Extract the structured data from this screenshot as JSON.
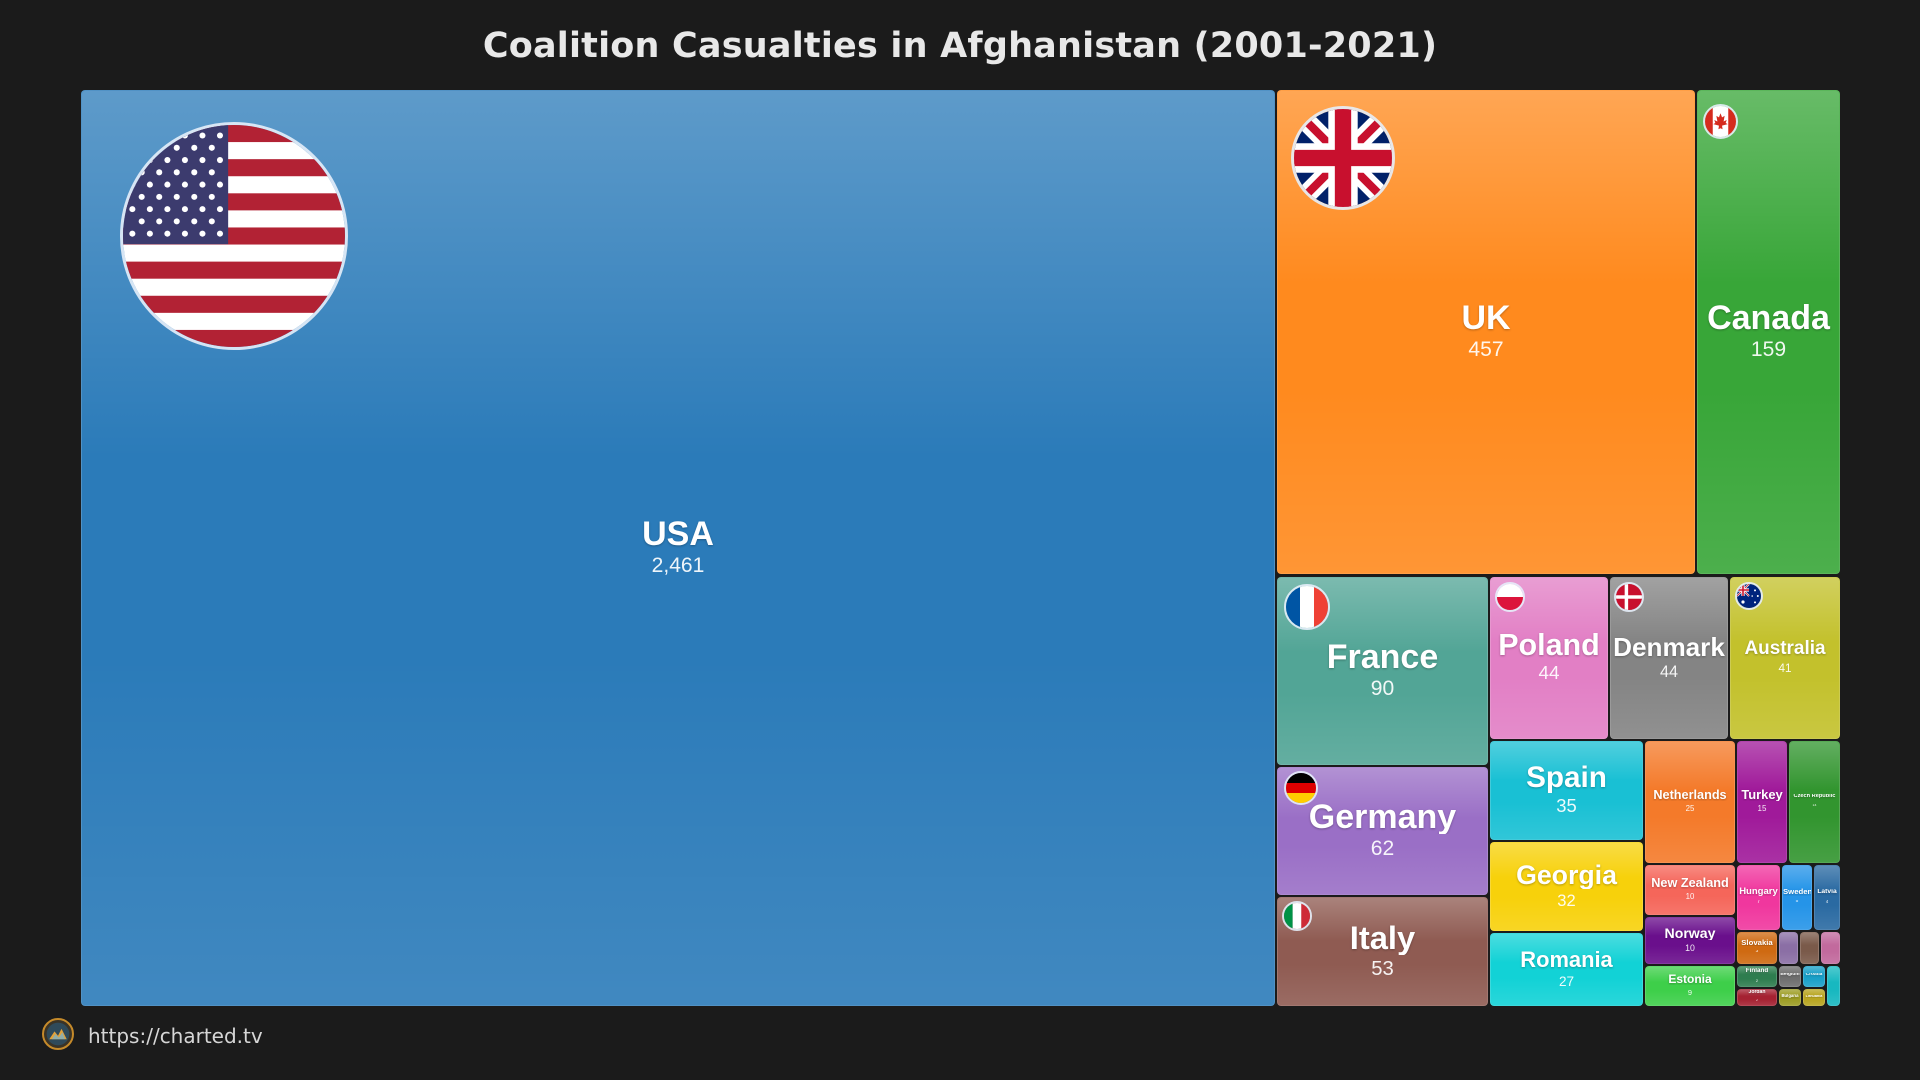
{
  "chart_data": {
    "type": "treemap",
    "title": "Coalition Casualties in Afghanistan (2001-2021)",
    "nodes": [
      {
        "label": "USA",
        "value": 2461,
        "display": "2,461",
        "color": "#2b7bb9",
        "flag": "usa-flag-icon"
      },
      {
        "label": "UK",
        "value": 457,
        "display": "457",
        "color": "#ff8a1e",
        "flag": "uk-flag-icon"
      },
      {
        "label": "Canada",
        "value": 159,
        "display": "159",
        "color": "#38a638",
        "flag": "canada-flag-icon"
      },
      {
        "label": "France",
        "value": 90,
        "display": "90",
        "color": "#52a596",
        "flag": "france-flag-icon"
      },
      {
        "label": "Poland",
        "value": 44,
        "display": "44",
        "color": "#e27fc5",
        "flag": "poland-flag-icon"
      },
      {
        "label": "Denmark",
        "value": 44,
        "display": "44",
        "color": "#848484",
        "flag": "denmark-flag-icon"
      },
      {
        "label": "Australia",
        "value": 41,
        "display": "41",
        "color": "#c3c12c",
        "flag": "australia-flag-icon"
      },
      {
        "label": "Germany",
        "value": 62,
        "display": "62",
        "color": "#9a6fc6",
        "flag": "germany-flag-icon"
      },
      {
        "label": "Italy",
        "value": 53,
        "display": "53",
        "color": "#8f5b52",
        "flag": "italy-flag-icon"
      },
      {
        "label": "Spain",
        "value": 35,
        "display": "35",
        "color": "#19c0d4"
      },
      {
        "label": "Georgia",
        "value": 32,
        "display": "32",
        "color": "#f7d10b"
      },
      {
        "label": "Romania",
        "value": 27,
        "display": "27",
        "color": "#12d2d6"
      },
      {
        "label": "Netherlands",
        "value": 25,
        "display": "25",
        "color": "#f47a2a"
      },
      {
        "label": "Turkey",
        "value": 15,
        "display": "15",
        "color": "#a01a9a"
      },
      {
        "label": "Czech Republic",
        "value": 14,
        "display": "14",
        "color": "#32952f"
      },
      {
        "label": "New Zealand",
        "value": 10,
        "display": "10",
        "color": "#f5665a"
      },
      {
        "label": "Norway",
        "value": 10,
        "display": "10",
        "color": "#6a0f8c"
      },
      {
        "label": "Estonia",
        "value": 9,
        "display": "9",
        "color": "#3ecf4a"
      },
      {
        "label": "Hungary",
        "value": 7,
        "display": "7",
        "color": "#f0379e"
      },
      {
        "label": "Sweden",
        "value": 5,
        "display": "5",
        "color": "#2594e8"
      },
      {
        "label": "Latvia",
        "value": 4,
        "display": "4",
        "color": "#2a6aa2"
      },
      {
        "label": "Slovakia",
        "value": 3,
        "display": "3",
        "color": "#cf6a12"
      },
      {
        "label": "",
        "value": 2,
        "display": "",
        "color": "#8b6fa5"
      },
      {
        "label": "",
        "value": 2,
        "display": "",
        "color": "#7a5a4a"
      },
      {
        "label": "",
        "value": 2,
        "display": "",
        "color": "#c26a9d"
      },
      {
        "label": "Finland",
        "value": 2,
        "display": "2",
        "color": "#2e7d4f"
      },
      {
        "label": "Belgium",
        "value": 1,
        "display": "",
        "color": "#6f6f6f"
      },
      {
        "label": "Croatia",
        "value": 1,
        "display": "",
        "color": "#1aa0c8"
      },
      {
        "label": "Jordan",
        "value": 2,
        "display": "2",
        "color": "#a52232"
      },
      {
        "label": "Bulgaria",
        "value": 1,
        "display": "",
        "color": "#9d9d24"
      },
      {
        "label": "Lithuania",
        "value": 1,
        "display": "",
        "color": "#b8a520"
      },
      {
        "label": "",
        "value": 1,
        "display": "",
        "color": "#18b8c0"
      }
    ]
  },
  "footer": {
    "url": "https://charted.tv",
    "logo_icon": "charted-logo-icon"
  }
}
